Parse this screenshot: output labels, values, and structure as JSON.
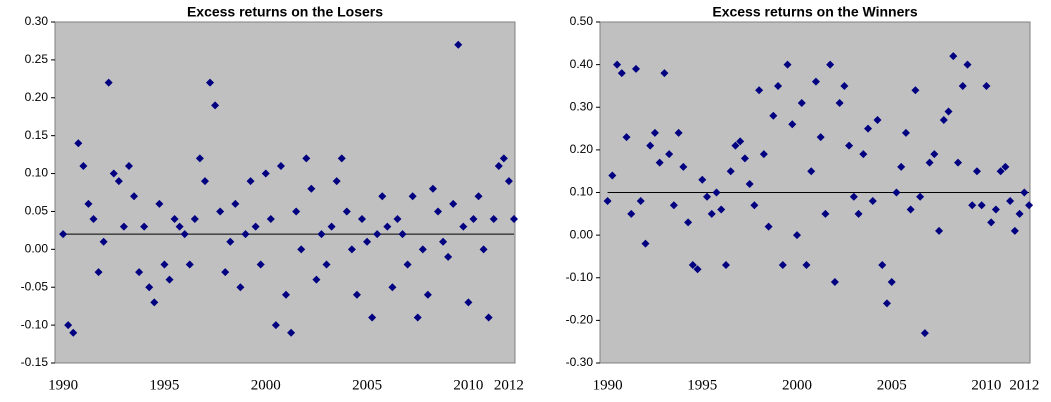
{
  "chart_data": [
    {
      "type": "scatter",
      "title": "Excess returns on the Losers",
      "color": "#000080",
      "hline": 0.02,
      "x": [
        1990,
        1990.25,
        1990.5,
        1990.75,
        1991,
        1991.25,
        1991.5,
        1991.75,
        1992,
        1992.25,
        1992.5,
        1992.75,
        1993,
        1993.25,
        1993.5,
        1993.75,
        1994,
        1994.25,
        1994.5,
        1994.75,
        1995,
        1995.25,
        1995.5,
        1995.75,
        1996,
        1996.25,
        1996.5,
        1996.75,
        1997,
        1997.25,
        1997.5,
        1997.75,
        1998,
        1998.25,
        1998.5,
        1998.75,
        1999,
        1999.25,
        1999.5,
        1999.75,
        2000,
        2000.25,
        2000.5,
        2000.75,
        2001,
        2001.25,
        2001.5,
        2001.75,
        2002,
        2002.25,
        2002.5,
        2002.75,
        2003,
        2003.25,
        2003.5,
        2003.75,
        2004,
        2004.25,
        2004.5,
        2004.75,
        2005,
        2005.25,
        2005.5,
        2005.75,
        2006,
        2006.25,
        2006.5,
        2006.75,
        2007,
        2007.25,
        2007.5,
        2007.75,
        2008,
        2008.25,
        2008.5,
        2008.75,
        2009,
        2009.25,
        2009.5,
        2009.75,
        2010,
        2010.25,
        2010.5,
        2010.75,
        2011,
        2011.25,
        2011.5,
        2011.75,
        2012,
        2012.25
      ],
      "values": [
        0.02,
        -0.1,
        -0.11,
        0.14,
        0.11,
        0.06,
        0.04,
        -0.03,
        0.01,
        0.22,
        0.1,
        0.09,
        0.03,
        0.11,
        0.07,
        -0.03,
        0.03,
        -0.05,
        -0.07,
        0.06,
        -0.02,
        -0.04,
        0.04,
        0.03,
        0.02,
        -0.02,
        0.04,
        0.12,
        0.09,
        0.22,
        0.19,
        0.05,
        -0.03,
        0.01,
        0.06,
        -0.05,
        0.02,
        0.09,
        0.03,
        -0.02,
        0.1,
        0.04,
        -0.1,
        0.11,
        -0.06,
        -0.11,
        0.05,
        0.0,
        0.12,
        0.08,
        -0.04,
        0.02,
        -0.02,
        0.03,
        0.09,
        0.12,
        0.05,
        0.0,
        -0.06,
        0.04,
        0.01,
        -0.09,
        0.02,
        0.07,
        0.03,
        -0.05,
        0.04,
        0.02,
        -0.02,
        0.07,
        -0.09,
        0.0,
        -0.06,
        0.08,
        0.05,
        0.01,
        -0.01,
        0.06,
        0.27,
        0.03,
        -0.07,
        0.04,
        0.07,
        0.0,
        -0.09,
        0.04,
        0.11,
        0.12,
        0.09,
        0.04
      ],
      "xlim": [
        1989.6,
        2012.3
      ],
      "xticks": [
        1990,
        1995,
        2000,
        2005,
        2010,
        2012
      ],
      "ylim": [
        -0.15,
        0.3
      ],
      "yticks": [
        {
          "value": -0.15,
          "label": "-0.15"
        },
        {
          "value": -0.1,
          "label": "-0.10"
        },
        {
          "value": -0.05,
          "label": "-0.05"
        },
        {
          "value": 0,
          "label": "0.00"
        },
        {
          "value": 0.05,
          "label": "0.05"
        },
        {
          "value": 0.1,
          "label": "0.10"
        },
        {
          "value": 0.15,
          "label": "0.15"
        },
        {
          "value": 0.2,
          "label": "0.20"
        },
        {
          "value": 0.25,
          "label": "0.25"
        },
        {
          "value": 0.3,
          "label": "0.30"
        }
      ]
    },
    {
      "type": "scatter",
      "title": "Excess returns on the Winners",
      "color": "#000080",
      "hline": 0.1,
      "x": [
        1990,
        1990.25,
        1990.5,
        1990.75,
        1991,
        1991.25,
        1991.5,
        1991.75,
        1992,
        1992.25,
        1992.5,
        1992.75,
        1993,
        1993.25,
        1993.5,
        1993.75,
        1994,
        1994.25,
        1994.5,
        1994.75,
        1995,
        1995.25,
        1995.5,
        1995.75,
        1996,
        1996.25,
        1996.5,
        1996.75,
        1997,
        1997.25,
        1997.5,
        1997.75,
        1998,
        1998.25,
        1998.5,
        1998.75,
        1999,
        1999.25,
        1999.5,
        1999.75,
        2000,
        2000.25,
        2000.5,
        2000.75,
        2001,
        2001.25,
        2001.5,
        2001.75,
        2002,
        2002.25,
        2002.5,
        2002.75,
        2003,
        2003.25,
        2003.5,
        2003.75,
        2004,
        2004.25,
        2004.5,
        2004.75,
        2005,
        2005.25,
        2005.5,
        2005.75,
        2006,
        2006.25,
        2006.5,
        2006.75,
        2007,
        2007.25,
        2007.5,
        2007.75,
        2008,
        2008.25,
        2008.5,
        2008.75,
        2009,
        2009.25,
        2009.5,
        2009.75,
        2010,
        2010.25,
        2010.5,
        2010.75,
        2011,
        2011.25,
        2011.5,
        2011.75,
        2012,
        2012.25
      ],
      "values": [
        0.08,
        0.14,
        0.4,
        0.38,
        0.23,
        0.05,
        0.39,
        0.08,
        -0.02,
        0.21,
        0.24,
        0.17,
        0.38,
        0.19,
        0.07,
        0.24,
        0.16,
        0.03,
        -0.07,
        -0.08,
        0.13,
        0.09,
        0.05,
        0.1,
        0.06,
        -0.07,
        0.15,
        0.21,
        0.22,
        0.18,
        0.12,
        0.07,
        0.34,
        0.19,
        0.02,
        0.28,
        0.35,
        -0.07,
        0.4,
        0.26,
        0.0,
        0.31,
        -0.07,
        0.15,
        0.36,
        0.23,
        0.05,
        0.4,
        -0.11,
        0.31,
        0.35,
        0.21,
        0.09,
        0.05,
        0.19,
        0.25,
        0.08,
        0.27,
        -0.07,
        -0.16,
        -0.11,
        0.1,
        0.16,
        0.24,
        0.06,
        0.34,
        0.09,
        -0.23,
        0.17,
        0.19,
        0.01,
        0.27,
        0.29,
        0.42,
        0.17,
        0.35,
        0.4,
        0.07,
        0.15,
        0.07,
        0.35,
        0.03,
        0.06,
        0.15,
        0.16,
        0.08,
        0.01,
        0.05,
        0.1,
        0.07
      ],
      "xlim": [
        1989.6,
        2012.3
      ],
      "xticks": [
        1990,
        1995,
        2000,
        2005,
        2010,
        2012
      ],
      "ylim": [
        -0.3,
        0.5
      ],
      "yticks": [
        {
          "value": -0.3,
          "label": "-0.30"
        },
        {
          "value": -0.2,
          "label": "-0.20"
        },
        {
          "value": -0.1,
          "label": "-0.10"
        },
        {
          "value": 0,
          "label": "0.00"
        },
        {
          "value": 0.1,
          "label": "0.10"
        },
        {
          "value": 0.2,
          "label": "0.20"
        },
        {
          "value": 0.3,
          "label": "0.30"
        },
        {
          "value": 0.4,
          "label": "0.40"
        },
        {
          "value": 0.5,
          "label": "0.50"
        }
      ]
    }
  ]
}
